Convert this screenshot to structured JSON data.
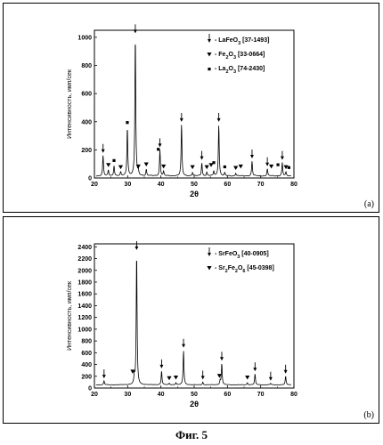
{
  "caption": "Фиг. 5",
  "chart_data": [
    {
      "type": "line",
      "panel_label": "(a)",
      "xlabel": "2θ",
      "ylabel": "Интенсивность, имп/сек",
      "xlim": [
        20,
        80
      ],
      "ylim": [
        0,
        1050
      ],
      "xticks": [
        20,
        30,
        40,
        50,
        60,
        70,
        80
      ],
      "yticks": [
        0,
        200,
        400,
        600,
        800,
        1000
      ],
      "legend_position": "top-right",
      "legend": [
        {
          "marker": "arrow",
          "label": "- LaFeO3 [37-1493]"
        },
        {
          "marker": "triangle",
          "label": "- Fe2O3 [33-0664]"
        },
        {
          "marker": "dot",
          "label": "- La2O3 [74-2430]"
        }
      ],
      "baseline": 15,
      "peaks": [
        {
          "x": 22.6,
          "y": 160
        },
        {
          "x": 24.2,
          "y": 55
        },
        {
          "x": 25.9,
          "y": 90
        },
        {
          "x": 27.9,
          "y": 40
        },
        {
          "x": 29.9,
          "y": 360
        },
        {
          "x": 32.3,
          "y": 1010
        },
        {
          "x": 33.2,
          "y": 45
        },
        {
          "x": 35.6,
          "y": 60
        },
        {
          "x": 39.7,
          "y": 200
        },
        {
          "x": 40.8,
          "y": 45
        },
        {
          "x": 46.2,
          "y": 380
        },
        {
          "x": 49.5,
          "y": 40
        },
        {
          "x": 52.3,
          "y": 110
        },
        {
          "x": 53.8,
          "y": 40
        },
        {
          "x": 55.9,
          "y": 50
        },
        {
          "x": 57.4,
          "y": 380
        },
        {
          "x": 59.2,
          "y": 35
        },
        {
          "x": 62.5,
          "y": 35
        },
        {
          "x": 67.4,
          "y": 120
        },
        {
          "x": 72.0,
          "y": 65
        },
        {
          "x": 76.5,
          "y": 110
        },
        {
          "x": 77.6,
          "y": 40
        }
      ],
      "markers": [
        {
          "type": "arrow",
          "x": 22.6,
          "y": 160
        },
        {
          "type": "triangle",
          "x": 24.2,
          "y": 55
        },
        {
          "type": "dot",
          "x": 25.9,
          "y": 90
        },
        {
          "type": "triangle",
          "x": 27.9,
          "y": 40
        },
        {
          "type": "dot",
          "x": 29.9,
          "y": 360
        },
        {
          "type": "arrow",
          "x": 32.3,
          "y": 1010
        },
        {
          "type": "triangle",
          "x": 33.2,
          "y": 45
        },
        {
          "type": "triangle",
          "x": 35.6,
          "y": 60
        },
        {
          "type": "arrow",
          "x": 39.7,
          "y": 200
        },
        {
          "type": "dot",
          "x": 39.2,
          "y": 170
        },
        {
          "type": "triangle",
          "x": 40.8,
          "y": 45
        },
        {
          "type": "arrow",
          "x": 46.2,
          "y": 380
        },
        {
          "type": "triangle",
          "x": 49.5,
          "y": 40
        },
        {
          "type": "arrow",
          "x": 52.3,
          "y": 110
        },
        {
          "type": "triangle",
          "x": 53.8,
          "y": 40
        },
        {
          "type": "triangle",
          "x": 55.1,
          "y": 55
        },
        {
          "type": "dot",
          "x": 55.9,
          "y": 75
        },
        {
          "type": "arrow",
          "x": 57.4,
          "y": 380
        },
        {
          "type": "dot",
          "x": 59.2,
          "y": 45
        },
        {
          "type": "triangle",
          "x": 62.5,
          "y": 35
        },
        {
          "type": "triangle",
          "x": 64.0,
          "y": 45
        },
        {
          "type": "arrow",
          "x": 67.4,
          "y": 120
        },
        {
          "type": "arrow",
          "x": 72.0,
          "y": 65
        },
        {
          "type": "triangle",
          "x": 73.2,
          "y": 45
        },
        {
          "type": "dot",
          "x": 75.2,
          "y": 60
        },
        {
          "type": "arrow",
          "x": 76.5,
          "y": 110
        },
        {
          "type": "triangle",
          "x": 77.6,
          "y": 40
        },
        {
          "type": "dot",
          "x": 78.5,
          "y": 40
        }
      ]
    },
    {
      "type": "line",
      "panel_label": "(b)",
      "xlabel": "2θ",
      "ylabel": "Интенсивность, имп/сек",
      "xlim": [
        20,
        80
      ],
      "ylim": [
        0,
        2450
      ],
      "xticks": [
        20,
        30,
        40,
        50,
        60,
        70,
        80
      ],
      "yticks": [
        0,
        200,
        400,
        600,
        800,
        1000,
        1200,
        1400,
        1600,
        1800,
        2000,
        2200,
        2400
      ],
      "legend_position": "top-right",
      "legend": [
        {
          "marker": "arrow",
          "label": "- SrFeO3 [40-0905]"
        },
        {
          "marker": "triangle",
          "label": "- Sr2Fe2O6 [45-0398]"
        }
      ],
      "baseline": 55,
      "peaks": [
        {
          "x": 22.9,
          "y": 120
        },
        {
          "x": 32.0,
          "y": 190
        },
        {
          "x": 32.7,
          "y": 2300
        },
        {
          "x": 40.2,
          "y": 290
        },
        {
          "x": 42.5,
          "y": 80
        },
        {
          "x": 44.5,
          "y": 90
        },
        {
          "x": 46.8,
          "y": 640
        },
        {
          "x": 52.6,
          "y": 100
        },
        {
          "x": 57.8,
          "y": 120
        },
        {
          "x": 58.3,
          "y": 420
        },
        {
          "x": 66.0,
          "y": 90
        },
        {
          "x": 68.3,
          "y": 240
        },
        {
          "x": 73.0,
          "y": 80
        },
        {
          "x": 77.5,
          "y": 200
        }
      ],
      "markers": [
        {
          "type": "arrow",
          "x": 22.9,
          "y": 120
        },
        {
          "type": "triangle",
          "x": 31.5,
          "y": 190
        },
        {
          "type": "arrow",
          "x": 32.7,
          "y": 2300
        },
        {
          "type": "arrow",
          "x": 40.2,
          "y": 290
        },
        {
          "type": "triangle",
          "x": 42.5,
          "y": 80
        },
        {
          "type": "triangle",
          "x": 44.5,
          "y": 90
        },
        {
          "type": "arrow",
          "x": 46.8,
          "y": 640
        },
        {
          "type": "arrow",
          "x": 52.6,
          "y": 100
        },
        {
          "type": "triangle",
          "x": 57.6,
          "y": 120
        },
        {
          "type": "arrow",
          "x": 58.3,
          "y": 420
        },
        {
          "type": "triangle",
          "x": 66.0,
          "y": 90
        },
        {
          "type": "arrow",
          "x": 68.3,
          "y": 240
        },
        {
          "type": "arrow",
          "x": 73.0,
          "y": 80
        },
        {
          "type": "arrow",
          "x": 77.5,
          "y": 200
        }
      ]
    }
  ]
}
